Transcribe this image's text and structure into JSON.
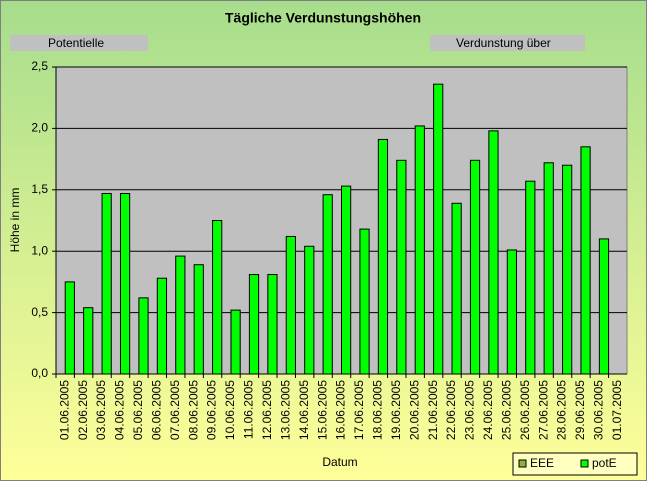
{
  "chart_data": {
    "type": "bar",
    "title": "Tägliche Verdunstungshöhen",
    "annotations": [
      "Potentielle",
      "Verdunstung über"
    ],
    "xlabel": "Datum",
    "ylabel": "Höhe in mm",
    "categories": [
      "01.06.2005",
      "02.06.2005",
      "03.06.2005",
      "04.06.2005",
      "05.06.2005",
      "06.06.2005",
      "07.06.2005",
      "08.06.2005",
      "09.06.2005",
      "10.06.2005",
      "11.06.2005",
      "12.06.2005",
      "13.06.2005",
      "14.06.2005",
      "15.06.2005",
      "16.06.2005",
      "17.06.2005",
      "18.06.2005",
      "19.06.2005",
      "20.06.2005",
      "21.06.2005",
      "22.06.2005",
      "23.06.2005",
      "24.06.2005",
      "25.06.2005",
      "26.06.2005",
      "27.06.2005",
      "28.06.2005",
      "29.06.2005",
      "30.06.2005",
      "01.07.2005"
    ],
    "series": [
      {
        "name": "EEE",
        "color": "#8cb43c",
        "values": [
          null,
          null,
          null,
          null,
          null,
          null,
          null,
          null,
          null,
          null,
          null,
          null,
          null,
          null,
          null,
          null,
          null,
          null,
          null,
          null,
          null,
          null,
          null,
          null,
          null,
          null,
          null,
          null,
          null,
          null,
          null
        ]
      },
      {
        "name": "potE",
        "color": "#00ff00",
        "values": [
          0.75,
          0.54,
          1.47,
          1.47,
          0.62,
          0.78,
          0.96,
          0.89,
          1.25,
          0.52,
          0.81,
          0.81,
          1.12,
          1.04,
          1.46,
          1.53,
          1.18,
          1.91,
          1.74,
          2.02,
          2.36,
          1.39,
          1.74,
          1.98,
          1.01,
          1.57,
          1.72,
          1.7,
          1.85,
          1.1,
          null
        ]
      }
    ],
    "ylim": [
      0,
      2.5
    ],
    "yticks": [
      {
        "value": 0,
        "label": "0,0"
      },
      {
        "value": 0.5,
        "label": "0,5"
      },
      {
        "value": 1,
        "label": "1,0"
      },
      {
        "value": 1.5,
        "label": "1,5"
      },
      {
        "value": 2,
        "label": "2,0"
      },
      {
        "value": 2.5,
        "label": "2,5"
      }
    ],
    "grid": true,
    "legend": "bottom-right"
  }
}
